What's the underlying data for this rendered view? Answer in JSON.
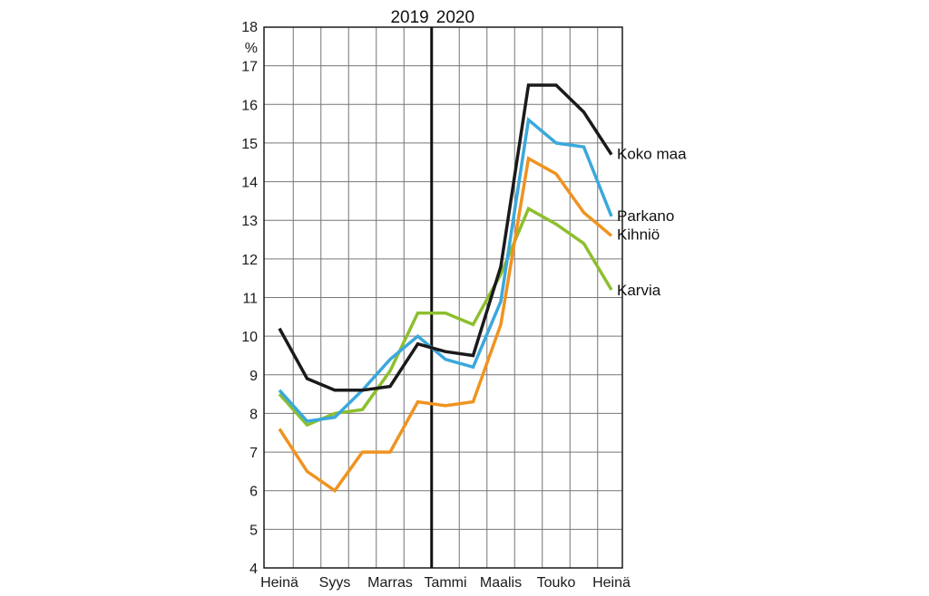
{
  "chart_data": {
    "type": "line",
    "ylabel": "%",
    "ylim": [
      4,
      18
    ],
    "yticks": [
      "4",
      "5",
      "6",
      "7",
      "8",
      "9",
      "10",
      "11",
      "12",
      "13",
      "14",
      "15",
      "16",
      "17",
      "18"
    ],
    "xlabels": [
      "Heinä",
      "Syys",
      "Marras",
      "Tammi",
      "Maalis",
      "Touko",
      "Heinä"
    ],
    "year_labels": [
      "2019",
      "2020"
    ],
    "grid": true,
    "series": [
      {
        "name": "Koko maa",
        "color": "#1a1a1a",
        "values": [
          10.2,
          8.9,
          8.6,
          8.6,
          8.7,
          9.8,
          9.6,
          9.5,
          11.8,
          16.5,
          16.5,
          15.8,
          14.7
        ]
      },
      {
        "name": "Parkano",
        "color": "#3aa8dc",
        "values": [
          8.6,
          7.8,
          7.9,
          8.6,
          9.4,
          10.0,
          9.4,
          9.2,
          10.9,
          15.6,
          15.0,
          14.9,
          13.1
        ]
      },
      {
        "name": "Kihniö",
        "color": "#ef9320",
        "values": [
          7.6,
          6.5,
          6.0,
          7.0,
          7.0,
          8.3,
          8.2,
          8.3,
          10.3,
          14.6,
          14.2,
          13.2,
          12.6
        ]
      },
      {
        "name": "Karvia",
        "color": "#8dbf2e",
        "values": [
          8.5,
          7.7,
          8.0,
          8.1,
          9.1,
          10.6,
          10.6,
          10.3,
          11.6,
          13.3,
          12.9,
          12.4,
          11.2
        ]
      }
    ]
  }
}
